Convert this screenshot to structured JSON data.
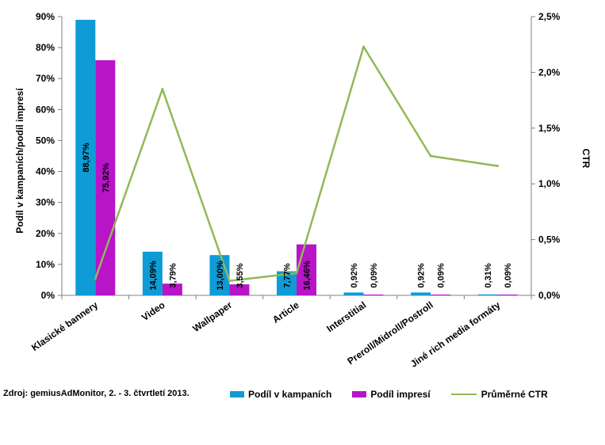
{
  "source": "Zdroj: gemiusAdMonitor, 2. - 3. čtvrtletí 2013.",
  "chart_data": {
    "type": "bar",
    "combo": "bar+line (secondary axis)",
    "categories": [
      "Klasické bannery",
      "Video",
      "Wallpaper",
      "Article",
      "Interstitial",
      "Preroll/Midroll/Postroll",
      "Jiné rich media formáty"
    ],
    "series": [
      {
        "name": "Podíl v kampaních",
        "type": "bar",
        "axis": "left",
        "color": "#0e9bd6",
        "values": [
          88.97,
          14.09,
          13.0,
          7.77,
          0.92,
          0.92,
          0.31
        ],
        "labels": [
          "88,97%",
          "14,09%",
          "13,00%",
          "7,77%",
          "0,92%",
          "0,92%",
          "0,31%"
        ]
      },
      {
        "name": "Podíl impresí",
        "type": "bar",
        "axis": "left",
        "color": "#b814c8",
        "values": [
          75.92,
          3.79,
          3.55,
          16.46,
          0.09,
          0.09,
          0.09
        ],
        "labels": [
          "75,92%",
          "3,79%",
          "3,55%",
          "16,46%",
          "0,09%",
          "0,09%",
          "0,09%"
        ]
      },
      {
        "name": "Průměrné CTR",
        "type": "line",
        "axis": "right",
        "color": "#92b955",
        "values": [
          0.15,
          1.85,
          0.13,
          0.2,
          2.23,
          1.25,
          1.16
        ]
      }
    ],
    "ylabel": "Podíl v kampaních/podíl impresí",
    "ylabel_right": "CTR",
    "ylim": [
      0,
      90
    ],
    "ylim_right": [
      0,
      2.5
    ],
    "yticks": [
      "0%",
      "10%",
      "20%",
      "30%",
      "40%",
      "50%",
      "60%",
      "70%",
      "80%",
      "90%"
    ],
    "yticks_right": [
      "0,0%",
      "0,5%",
      "1,0%",
      "1,5%",
      "2,0%",
      "2,5%"
    ],
    "grid": false,
    "legend_position": "bottom"
  }
}
